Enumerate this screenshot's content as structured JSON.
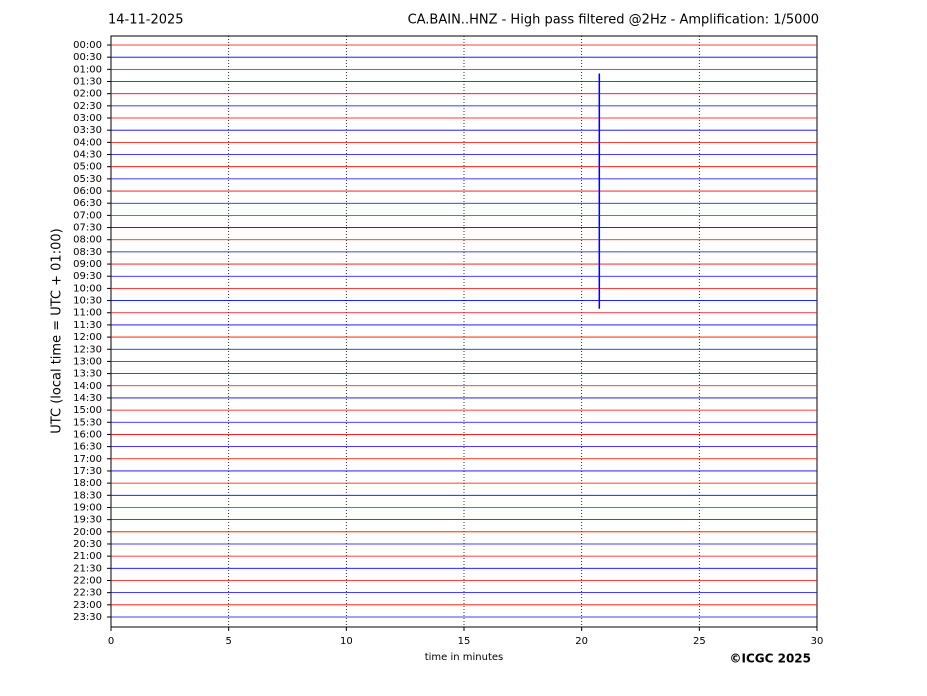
{
  "chart_data": {
    "type": "helicorder",
    "title_left": "14-11-2025",
    "title": "CA.BAIN..HNZ - High pass filtered @2Hz - Amplification: 1/5000",
    "xlabel": "time in minutes",
    "ylabel": "UTC (local time = UTC + 01:00)",
    "credit": "©ICGC 2025",
    "categories": [
      "00:00",
      "00:30",
      "01:00",
      "01:30",
      "02:00",
      "02:30",
      "03:00",
      "03:30",
      "04:00",
      "04:30",
      "05:00",
      "05:30",
      "06:00",
      "06:30",
      "07:00",
      "07:30",
      "08:00",
      "08:30",
      "09:00",
      "09:30",
      "10:00",
      "10:30",
      "11:00",
      "11:30",
      "12:00",
      "12:30",
      "13:00",
      "13:30",
      "14:00",
      "14:30",
      "15:00",
      "15:30",
      "16:00",
      "16:30",
      "17:00",
      "17:30",
      "18:00",
      "18:30",
      "19:00",
      "19:30",
      "20:00",
      "20:30",
      "21:00",
      "21:30",
      "22:00",
      "22:30",
      "23:00",
      "23:30"
    ],
    "colors": [
      "#ff0000",
      "#0000ff"
    ],
    "events": [
      {
        "x": 20.75,
        "rows": [
          "01:30",
          "11:00"
        ],
        "color": "#0000ff"
      }
    ],
    "xlim": [
      0,
      30
    ],
    "xticks": [
      0,
      5,
      10,
      15,
      20,
      25,
      30
    ],
    "grid": true
  }
}
